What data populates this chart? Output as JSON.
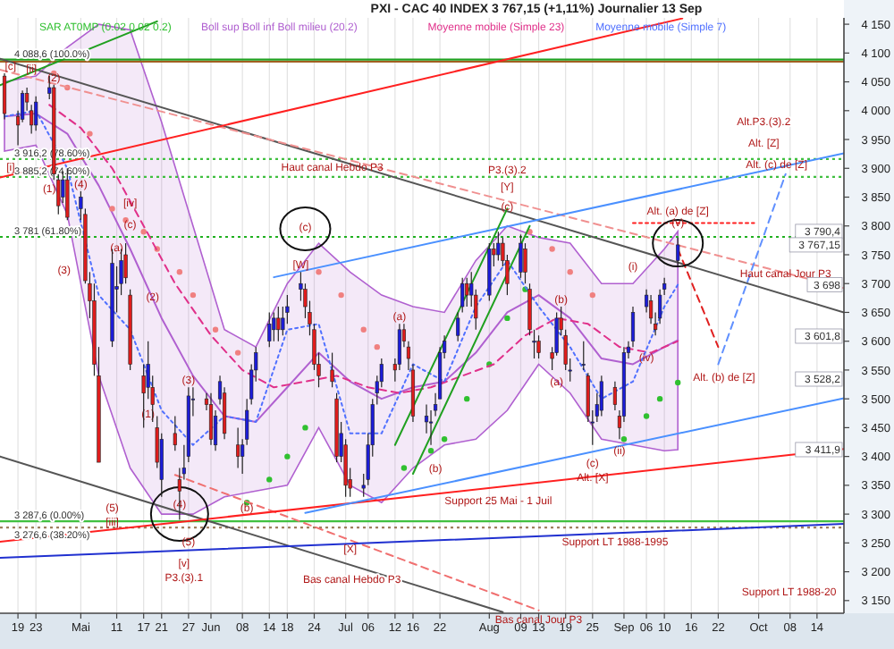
{
  "chart_data": {
    "type": "candlestick",
    "title": "PXI - CAC 40 INDEX   3 767,15 (+1,11%)   Journalier  13 Sep",
    "x": [
      "--04-16",
      "--04-19",
      "--04-20",
      "--04-21",
      "--04-22",
      "--04-23",
      "--04-26",
      "--04-27",
      "--04-28",
      "--04-29",
      "--04-30",
      "--05-03",
      "--05-04",
      "--05-05",
      "--05-06",
      "--05-07",
      "--05-10",
      "--05-11",
      "--05-12",
      "--05-13",
      "--05-14",
      "--05-17",
      "--05-18",
      "--05-19",
      "--05-20",
      "--05-21",
      "--05-24",
      "--05-25",
      "--05-26",
      "--05-27",
      "--05-28",
      "--05-31",
      "--06-01",
      "--06-02",
      "--06-03",
      "--06-04",
      "--06-07",
      "--06-08",
      "--06-09",
      "--06-10",
      "--06-11",
      "--06-14",
      "--06-15",
      "--06-16",
      "--06-17",
      "--06-18",
      "--06-21",
      "--06-22",
      "--06-23",
      "--06-24",
      "--06-25",
      "--06-28",
      "--06-29",
      "--06-30",
      "--07-01",
      "--07-02",
      "--07-05",
      "--07-06",
      "--07-07",
      "--07-08",
      "--07-09",
      "--07-12",
      "--07-13",
      "--07-14",
      "--07-15",
      "--07-16",
      "--07-19",
      "--07-20",
      "--07-21",
      "--07-22",
      "--07-23",
      "--07-26",
      "--07-27",
      "--07-28",
      "--07-29",
      "--07-30",
      "--08-02",
      "--08-03",
      "--08-04",
      "--08-05",
      "--08-06",
      "--08-09",
      "--08-10",
      "--08-11",
      "--08-12",
      "--08-13",
      "--08-16",
      "--08-17",
      "--08-18",
      "--08-19",
      "--08-20",
      "--08-23",
      "--08-24",
      "--08-25",
      "--08-26",
      "--08-27",
      "--08-30",
      "--08-31",
      "--09-01",
      "--09-02",
      "--09-03",
      "--09-06",
      "--09-07",
      "--09-08",
      "--09-09",
      "--09-10",
      "--09-13"
    ],
    "ohlc": [
      [
        4060,
        4065,
        3985,
        3995
      ],
      [
        3990,
        4000,
        3940,
        3975
      ],
      [
        3985,
        4035,
        3980,
        4030
      ],
      [
        4030,
        4040,
        4000,
        4015
      ],
      [
        4000,
        4010,
        3960,
        3975
      ],
      [
        3975,
        4025,
        3965,
        4015
      ],
      [
        4030,
        4060,
        4020,
        4040
      ],
      [
        4040,
        4045,
        3880,
        3890
      ],
      [
        3880,
        3890,
        3820,
        3835
      ],
      [
        3850,
        3895,
        3840,
        3880
      ],
      [
        3880,
        3900,
        3810,
        3815
      ],
      [
        3830,
        3860,
        3810,
        3850
      ],
      [
        3820,
        3830,
        3700,
        3705
      ],
      [
        3700,
        3720,
        3640,
        3670
      ],
      [
        3670,
        3700,
        3540,
        3560
      ],
      [
        3540,
        3590,
        3390,
        3390
      ],
      [
        3600,
        3760,
        3590,
        3735
      ],
      [
        3690,
        3730,
        3650,
        3695
      ],
      [
        3700,
        3760,
        3680,
        3740
      ],
      [
        3750,
        3770,
        3700,
        3710
      ],
      [
        3680,
        3690,
        3550,
        3560
      ],
      [
        3540,
        3560,
        3450,
        3510
      ],
      [
        3520,
        3600,
        3500,
        3560
      ],
      [
        3520,
        3540,
        3460,
        3490
      ],
      [
        3450,
        3470,
        3380,
        3390
      ],
      [
        3360,
        3440,
        3330,
        3430
      ],
      [
        3440,
        3470,
        3410,
        3420
      ],
      [
        3360,
        3380,
        3290,
        3340
      ],
      [
        3370,
        3420,
        3360,
        3380
      ],
      [
        3400,
        3520,
        3390,
        3505
      ],
      [
        3500,
        3520,
        3470,
        3500
      ],
      [
        3500,
        3510,
        3480,
        3490
      ],
      [
        3490,
        3510,
        3420,
        3430
      ],
      [
        3420,
        3480,
        3410,
        3470
      ],
      [
        3500,
        3540,
        3490,
        3530
      ],
      [
        3510,
        3520,
        3430,
        3440
      ],
      [
        3420,
        3450,
        3380,
        3400
      ],
      [
        3400,
        3430,
        3370,
        3420
      ],
      [
        3430,
        3500,
        3420,
        3480
      ],
      [
        3500,
        3560,
        3490,
        3550
      ],
      [
        3550,
        3590,
        3530,
        3580
      ],
      [
        3600,
        3650,
        3590,
        3630
      ],
      [
        3620,
        3650,
        3600,
        3640
      ],
      [
        3640,
        3660,
        3600,
        3620
      ],
      [
        3620,
        3660,
        3610,
        3640
      ],
      [
        3650,
        3680,
        3630,
        3660
      ],
      [
        3690,
        3720,
        3670,
        3700
      ],
      [
        3690,
        3700,
        3640,
        3660
      ],
      [
        3650,
        3670,
        3610,
        3630
      ],
      [
        3620,
        3630,
        3550,
        3560
      ],
      [
        3560,
        3580,
        3520,
        3540
      ],
      [
        3550,
        3580,
        3520,
        3530
      ],
      [
        3500,
        3510,
        3390,
        3400
      ],
      [
        3400,
        3460,
        3390,
        3440
      ],
      [
        3420,
        3430,
        3330,
        3350
      ],
      [
        3360,
        3380,
        3330,
        3345
      ],
      [
        3345,
        3370,
        3330,
        3350
      ],
      [
        3360,
        3440,
        3350,
        3420
      ],
      [
        3420,
        3500,
        3400,
        3490
      ],
      [
        3510,
        3540,
        3490,
        3530
      ],
      [
        3530,
        3570,
        3520,
        3560
      ],
      [
        3560,
        3570,
        3530,
        3550
      ],
      [
        3560,
        3630,
        3550,
        3620
      ],
      [
        3620,
        3630,
        3590,
        3600
      ],
      [
        3590,
        3600,
        3550,
        3570
      ],
      [
        3550,
        3560,
        3460,
        3470
      ],
      [
        3460,
        3490,
        3440,
        3470
      ],
      [
        3460,
        3480,
        3420,
        3460
      ],
      [
        3480,
        3510,
        3470,
        3490
      ],
      [
        3500,
        3590,
        3500,
        3580
      ],
      [
        3580,
        3610,
        3570,
        3600
      ],
      [
        3610,
        3650,
        3600,
        3640
      ],
      [
        3660,
        3710,
        3650,
        3700
      ],
      [
        3700,
        3710,
        3660,
        3680
      ],
      [
        3680,
        3720,
        3660,
        3700
      ],
      [
        3680,
        3690,
        3620,
        3640
      ],
      [
        3680,
        3770,
        3670,
        3760
      ],
      [
        3760,
        3770,
        3730,
        3750
      ],
      [
        3750,
        3790,
        3740,
        3770
      ],
      [
        3770,
        3780,
        3730,
        3740
      ],
      [
        3740,
        3750,
        3680,
        3700
      ],
      [
        3720,
        3785,
        3710,
        3770
      ],
      [
        3760,
        3770,
        3700,
        3720
      ],
      [
        3690,
        3700,
        3610,
        3620
      ],
      [
        3600,
        3620,
        3570,
        3600
      ],
      [
        3600,
        3610,
        3570,
        3580
      ],
      [
        3580,
        3590,
        3550,
        3570
      ],
      [
        3580,
        3650,
        3575,
        3640
      ],
      [
        3640,
        3660,
        3610,
        3620
      ],
      [
        3610,
        3620,
        3550,
        3560
      ],
      [
        3550,
        3570,
        3530,
        3550
      ],
      [
        3560,
        3600,
        3550,
        3560
      ],
      [
        3540,
        3545,
        3460,
        3470
      ],
      [
        3460,
        3480,
        3420,
        3460
      ],
      [
        3470,
        3510,
        3460,
        3490
      ],
      [
        3480,
        3540,
        3470,
        3530
      ],
      [
        3520,
        3530,
        3480,
        3490
      ],
      [
        3470,
        3480,
        3430,
        3450
      ],
      [
        3470,
        3590,
        3460,
        3580
      ],
      [
        3580,
        3600,
        3570,
        3590
      ],
      [
        3600,
        3660,
        3590,
        3650
      ],
      [
        3660,
        3690,
        3650,
        3680
      ],
      [
        3670,
        3680,
        3630,
        3640
      ],
      [
        3630,
        3650,
        3610,
        3620
      ],
      [
        3640,
        3690,
        3630,
        3680
      ],
      [
        3690,
        3710,
        3680,
        3700
      ],
      [
        3740,
        3780,
        3730,
        3767.15
      ]
    ],
    "xlim": [
      "--04-15",
      "--10-20"
    ],
    "xticks": [
      {
        "value": "--04-19",
        "label": "19"
      },
      {
        "value": "--04-23",
        "label": "23"
      },
      {
        "value": "--05-03",
        "label": "Mai"
      },
      {
        "value": "--05-11",
        "label": "11"
      },
      {
        "value": "--05-17",
        "label": "17"
      },
      {
        "value": "--05-21",
        "label": "21"
      },
      {
        "value": "--05-27",
        "label": "27"
      },
      {
        "value": "--06-01",
        "label": "Jun"
      },
      {
        "value": "--06-08",
        "label": "08"
      },
      {
        "value": "--06-14",
        "label": "14"
      },
      {
        "value": "--06-18",
        "label": "18"
      },
      {
        "value": "--06-24",
        "label": "24"
      },
      {
        "value": "--07-01",
        "label": "Jul"
      },
      {
        "value": "--07-06",
        "label": "06"
      },
      {
        "value": "--07-12",
        "label": "12"
      },
      {
        "value": "--07-16",
        "label": "16"
      },
      {
        "value": "--07-22",
        "label": "22"
      },
      {
        "value": "--08-02",
        "label": "Aug"
      },
      {
        "value": "--08-09",
        "label": "09"
      },
      {
        "value": "--08-13",
        "label": "13"
      },
      {
        "value": "--08-19",
        "label": "19"
      },
      {
        "value": "--08-25",
        "label": "25"
      },
      {
        "value": "--09-01",
        "label": "Sep"
      },
      {
        "value": "--09-06",
        "label": "06"
      },
      {
        "value": "--09-10",
        "label": "10"
      },
      {
        "value": "--09-16",
        "label": "16"
      },
      {
        "value": "--09-22",
        "label": "22"
      },
      {
        "value": "--10-01",
        "label": "Oct"
      },
      {
        "value": "--10-08",
        "label": "08"
      },
      {
        "value": "--10-14",
        "label": "14"
      }
    ],
    "ylim": [
      3128,
      4161
    ],
    "yticks": [
      {
        "value": 3150,
        "label": "3 150"
      },
      {
        "value": 3200,
        "label": "3 200"
      },
      {
        "value": 3250,
        "label": "3 250"
      },
      {
        "value": 3300,
        "label": "3 300"
      },
      {
        "value": 3350,
        "label": "3 350"
      },
      {
        "value": 3400,
        "label": "3 400"
      },
      {
        "value": 3450,
        "label": "3 450"
      },
      {
        "value": 3500,
        "label": "3 500"
      },
      {
        "value": 3550,
        "label": "3 550"
      },
      {
        "value": 3600,
        "label": "3 600"
      },
      {
        "value": 3650,
        "label": "3 650"
      },
      {
        "value": 3700,
        "label": "3 700"
      },
      {
        "value": 3750,
        "label": "3 750"
      },
      {
        "value": 3800,
        "label": "3 800"
      },
      {
        "value": 3850,
        "label": "3 850"
      },
      {
        "value": 3900,
        "label": "3 900"
      },
      {
        "value": 3950,
        "label": "3 950"
      },
      {
        "value": 4000,
        "label": "4 000"
      },
      {
        "value": 4050,
        "label": "4 050"
      },
      {
        "value": 4100,
        "label": "4 100"
      },
      {
        "value": 4150,
        "label": "4 150"
      }
    ],
    "grid": "x",
    "legend": "top",
    "series": [
      {
        "type": "scatter",
        "name": "SAR AT0MP (0.02 0.02 0.2)",
        "color": "#30c030",
        "x": [
          "--04-27",
          "--04-30",
          "--05-05",
          "--05-10",
          "--05-13",
          "--05-17",
          "--05-20",
          "--05-25",
          "--05-28",
          "--06-02",
          "--06-07",
          "--06-09",
          "--06-14",
          "--06-18",
          "--06-22",
          "--06-25",
          "--06-30",
          "--07-05",
          "--07-08",
          "--07-14",
          "--07-20",
          "--07-23",
          "--07-28",
          "--08-02",
          "--08-06",
          "--08-10",
          "--08-11",
          "--08-16",
          "--08-20",
          "--08-25",
          "--09-01",
          "--09-06",
          "--09-09",
          "--09-13"
        ],
        "values": [
          4065,
          4040,
          3960,
          3830,
          3810,
          3790,
          3760,
          3720,
          3680,
          3620,
          3580,
          3320,
          3360,
          3400,
          3450,
          3720,
          3680,
          3620,
          3590,
          3380,
          3410,
          3430,
          3500,
          3560,
          3640,
          3690,
          3790,
          3760,
          3720,
          3680,
          3430,
          3470,
          3500,
          3528.2
        ],
        "colors": [
          "#f08080",
          "#f08080",
          "#f08080",
          "#f08080",
          "#f08080",
          "#f08080",
          "#f08080",
          "#f08080",
          "#f08080",
          "#f08080",
          "#f08080",
          "#30c030",
          "#30c030",
          "#30c030",
          "#30c030",
          "#f08080",
          "#f08080",
          "#f08080",
          "#f08080",
          "#30c030",
          "#30c030",
          "#30c030",
          "#30c030",
          "#30c030",
          "#30c030",
          "#30c030",
          "#f08080",
          "#f08080",
          "#f08080",
          "#f08080",
          "#30c030",
          "#30c030",
          "#30c030",
          "#30c030"
        ]
      },
      {
        "type": "line",
        "name": "Boll sup Boll inf Boll milieu (20.2)",
        "color": "#b060d0",
        "x": [
          "--04-16",
          "--04-23",
          "--04-30",
          "--05-07",
          "--05-14",
          "--05-21",
          "--05-28",
          "--06-04",
          "--06-11",
          "--06-18",
          "--06-25",
          "--07-02",
          "--07-09",
          "--07-16",
          "--07-23",
          "--07-30",
          "--08-06",
          "--08-13",
          "--08-20",
          "--08-27",
          "--09-03",
          "--09-10",
          "--09-13"
        ],
        "values": [
          3990,
          3995,
          3960,
          3870,
          3760,
          3640,
          3540,
          3470,
          3460,
          3520,
          3580,
          3530,
          3500,
          3520,
          3530,
          3580,
          3650,
          3680,
          3640,
          3570,
          3560,
          3590,
          3601.8
        ],
        "lower": [
          3930,
          3940,
          3820,
          3540,
          3380,
          3300,
          3300,
          3330,
          3340,
          3350,
          3450,
          3350,
          3320,
          3380,
          3420,
          3430,
          3480,
          3560,
          3510,
          3430,
          3420,
          3410,
          3411.9
        ],
        "upper": [
          4050,
          4060,
          4110,
          4150,
          4140,
          3980,
          3800,
          3620,
          3590,
          3700,
          3770,
          3720,
          3680,
          3660,
          3650,
          3740,
          3800,
          3780,
          3770,
          3700,
          3700,
          3760,
          3790.4
        ]
      },
      {
        "type": "line",
        "name": "Moyenne mobile (Simple 23)",
        "color": "#e0308a",
        "line_style": "dashed",
        "x": [
          "--04-26",
          "--05-03",
          "--05-10",
          "--05-17",
          "--05-24",
          "--06-01",
          "--06-08",
          "--06-15",
          "--06-22",
          "--06-29",
          "--07-06",
          "--07-13",
          "--07-20",
          "--07-27",
          "--08-03",
          "--08-10",
          "--08-17",
          "--08-24",
          "--08-31",
          "--09-07",
          "--09-13"
        ],
        "values": [
          4010,
          3970,
          3900,
          3800,
          3700,
          3610,
          3550,
          3520,
          3530,
          3540,
          3520,
          3510,
          3520,
          3540,
          3560,
          3610,
          3640,
          3630,
          3590,
          3580,
          3600
        ]
      },
      {
        "type": "line",
        "name": "Moyenne mobile (Simple 7)",
        "color": "#5070ff",
        "line_style": "dotted",
        "x": [
          "--04-16",
          "--04-23",
          "--04-30",
          "--05-07",
          "--05-14",
          "--05-21",
          "--05-28",
          "--06-04",
          "--06-11",
          "--06-18",
          "--06-25",
          "--07-02",
          "--07-09",
          "--07-16",
          "--07-23",
          "--07-30",
          "--08-06",
          "--08-13",
          "--08-20",
          "--08-27",
          "--09-03",
          "--09-10",
          "--09-13"
        ],
        "values": [
          3990,
          4000,
          3900,
          3680,
          3620,
          3480,
          3420,
          3470,
          3460,
          3620,
          3630,
          3440,
          3440,
          3560,
          3530,
          3660,
          3740,
          3660,
          3590,
          3500,
          3530,
          3660,
          3698
        ]
      },
      {
        "type": "line",
        "color": "#555555",
        "x": [
          "--04-15",
          "--10-20"
        ],
        "values": [
          4090,
          3650
        ]
      },
      {
        "type": "line",
        "color": "#555555",
        "x": [
          "--04-15",
          "--08-05"
        ],
        "values": [
          3400,
          3130
        ]
      },
      {
        "type": "line",
        "color": "#f09090",
        "line_style": "dashed",
        "x": [
          "--04-15",
          "--10-20"
        ],
        "values": [
          4071,
          3692
        ]
      },
      {
        "type": "line",
        "color": "#f07070",
        "line_style": "dashed",
        "x": [
          "--05-24",
          "--08-13"
        ],
        "values": [
          3368,
          3133
        ]
      },
      {
        "type": "line",
        "color": "#ff2020",
        "x": [
          "--04-15",
          "--09-14"
        ],
        "values": [
          3884,
          4160
        ]
      },
      {
        "type": "line",
        "color": "#ff2020",
        "x": [
          "--04-15",
          "--10-20"
        ],
        "values": [
          3252,
          3413
        ]
      },
      {
        "type": "line",
        "color": "#4a90ff",
        "x": [
          "--06-15",
          "--10-20"
        ],
        "values": [
          3711,
          3926
        ]
      },
      {
        "type": "line",
        "color": "#4a90ff",
        "x": [
          "--06-22",
          "--10-20"
        ],
        "values": [
          3302,
          3501
        ]
      },
      {
        "type": "line",
        "color": "#2030d0",
        "x": [
          "--04-15",
          "--10-20"
        ],
        "values": [
          3224,
          3283
        ]
      },
      {
        "type": "line",
        "color": "#20a020",
        "x": [
          "--04-15",
          "--05-20"
        ],
        "values": [
          4044,
          4155
        ]
      },
      {
        "type": "line",
        "color": "#20a020",
        "x": [
          "--07-12",
          "--08-06"
        ],
        "values": [
          3420,
          3830
        ]
      },
      {
        "type": "line",
        "color": "#20a020",
        "x": [
          "--07-16",
          "--08-11"
        ],
        "values": [
          3370,
          3800
        ]
      },
      {
        "type": "line",
        "color": "#ff2020",
        "line_style": "dotted",
        "x": [
          "--09-03",
          "--09-30"
        ],
        "values": [
          3805,
          3805
        ]
      },
      {
        "type": "line",
        "color": "#e02020",
        "line_style": "dashed",
        "x": [
          "--09-13",
          "--09-22"
        ],
        "values": [
          3760,
          3590
        ]
      },
      {
        "type": "line",
        "color": "#6090ff",
        "line_style": "dashed",
        "x": [
          "--09-22",
          "--10-07"
        ],
        "values": [
          3560,
          3890
        ]
      }
    ],
    "ref_lines": [
      {
        "axis": "y",
        "value": 4088.6,
        "label": "4 088,6 (100.0%)",
        "color": "#20a020"
      },
      {
        "axis": "y",
        "value": 4085,
        "color": "#a06020"
      },
      {
        "axis": "y",
        "value": 3916.2,
        "label": "3 916,2 (78.60%)",
        "color": "#40c040",
        "line_style": "dotted"
      },
      {
        "axis": "y",
        "value": 3885.2,
        "label": "3 885,2 (74.60%)",
        "color": "#40c040",
        "line_style": "dotted"
      },
      {
        "axis": "y",
        "value": 3781,
        "label": "3 781 (61.80%)",
        "color": "#20b020",
        "line_style": "dotted"
      },
      {
        "axis": "y",
        "value": 3287.6,
        "label": "3 287,6 (0.00%)",
        "color": "#40c040"
      },
      {
        "axis": "y",
        "value": 3276.6,
        "label": "3 276,6 (38.20%)",
        "color": "#a08060",
        "line_style": "dotted"
      }
    ],
    "annotations": [
      {
        "text": "[c]",
        "x": "--04-16",
        "y": 4065
      },
      {
        "text": "[ii]",
        "x": "--04-22",
        "y": 4060
      },
      {
        "text": "[i]",
        "x": "--04-16",
        "y": 3918
      },
      {
        "text": "[iv]",
        "x": "--05-14",
        "y": 3828
      },
      {
        "text": "[iii]",
        "x": "--05-10",
        "y": 3302
      },
      {
        "text": "[v]",
        "x": "--05-26",
        "y": 3230
      },
      {
        "text": "(2)",
        "x": "--04-27",
        "y": 4045
      },
      {
        "text": "(1)",
        "x": "--04-26",
        "y": 3881
      },
      "(3)",
      {
        "text": "(4)",
        "x": "--05-03",
        "y": 3860
      },
      {
        "text": "(5)",
        "x": "--05-10",
        "y": 3326
      },
      {
        "text": "(1)",
        "x": "--05-18",
        "y": 3490
      },
      {
        "text": "(2)",
        "x": "--05-19",
        "y": 3664
      },
      {
        "text": "(3)",
        "x": "--05-27",
        "y": 3520
      },
      {
        "text": "(4)",
        "x": "--05-25",
        "y": 3317
      },
      {
        "text": "(5)",
        "x": "--05-27",
        "y": 3268
      },
      {
        "text": "(a)",
        "x": "--05-11",
        "y": 3750
      },
      {
        "text": "(c)",
        "x": "--05-14",
        "y": 3790
      },
      {
        "text": "(b)",
        "x": "--06-09",
        "y": 3326
      },
      {
        "text": "[W]",
        "x": "--06-21",
        "y": 3720
      },
      {
        "text": "(c)",
        "x": "--06-22",
        "y": 3785
      },
      {
        "text": "[X]",
        "x": "--07-02",
        "y": 3255
      },
      {
        "text": "(a)",
        "x": "--07-13",
        "y": 3630
      },
      {
        "text": "(b)",
        "x": "--07-21",
        "y": 3395
      },
      {
        "text": "[Y]",
        "x": "--08-06",
        "y": 3856
      },
      {
        "text": "(c)",
        "x": "--08-06",
        "y": 3822
      },
      {
        "text": "(a)",
        "x": "--08-17",
        "y": 3546
      },
      {
        "text": "(b)",
        "x": "--08-18",
        "y": 3660
      },
      {
        "text": "(c)",
        "x": "--08-25",
        "y": 3404
      },
      {
        "text": "(ii)",
        "x": "--08-31",
        "y": 3426
      },
      {
        "text": "(i)",
        "x": "--09-03",
        "y": 3717
      },
      {
        "text": "(iv)",
        "x": "--09-06",
        "y": 3587
      },
      {
        "text": "(v)",
        "x": "--09-13",
        "y": 3794
      },
      {
        "text": "Haut canal Hebdo P3",
        "x": "--06-28",
        "y": 3890
      },
      {
        "text": "P3.(3).2",
        "x": "--08-06",
        "y": 3885.2
      },
      "Alt.P3.(3).2",
      "Alt. [Z]",
      {
        "text": "Alt. (c) de [Z]",
        "x": "--10-05",
        "y": 3906
      },
      {
        "text": "Alt. (a) de [Z]",
        "x": "--09-13",
        "y": 3813
      },
      {
        "text": "Haut canal Jour P3",
        "x": "--10-07",
        "y": 3718
      },
      "Alt. (b) de [Z]",
      {
        "text": "Alt. [X]",
        "x": "--08-25",
        "y": 3380
      },
      {
        "text": "Support 25 Mai - 1 Juil",
        "x": "--08-04",
        "y": 3339
      },
      {
        "text": "Support LT 1988-1995",
        "x": "--08-30",
        "y": 3267
      },
      {
        "text": "Bas canal Jour P3",
        "x": "--08-13",
        "y": 3133
      },
      "Support LT 1988-20",
      "Bas canal Hebdo P3",
      "P3.(3).1",
      {
        "text": "3 790,4",
        "y": 3790.4
      },
      {
        "text": "3 767,15",
        "y": 3767.15
      },
      {
        "text": "3 698",
        "y": 3698
      },
      "3 601,8",
      "3 528,2",
      {
        "text": "3 411,9",
        "y": 3411.9
      }
    ]
  }
}
